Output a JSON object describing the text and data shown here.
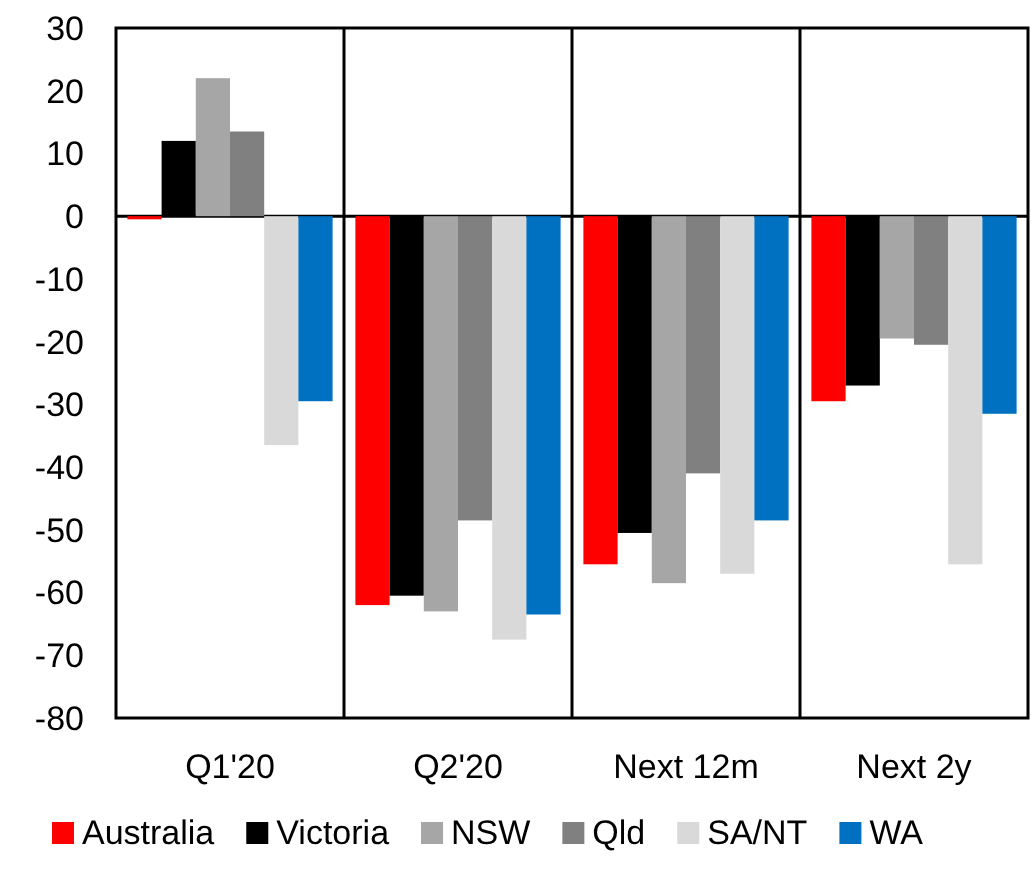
{
  "chart_data": {
    "type": "bar",
    "categories": [
      "Q1'20",
      "Q2'20",
      "Next 12m",
      "Next 2y"
    ],
    "series": [
      {
        "name": "Australia",
        "color": "#ff0000",
        "values": [
          -0.5,
          -62,
          -55.5,
          -29.5
        ]
      },
      {
        "name": "Victoria",
        "color": "#000000",
        "values": [
          12,
          -60.5,
          -50.5,
          -27
        ]
      },
      {
        "name": "NSW",
        "color": "#a6a6a6",
        "values": [
          22,
          -63,
          -58.5,
          -19.5
        ]
      },
      {
        "name": "Qld",
        "color": "#808080",
        "values": [
          13.5,
          -48.5,
          -41,
          -20.5
        ]
      },
      {
        "name": "SA/NT",
        "color": "#d9d9d9",
        "values": [
          -36.5,
          -67.5,
          -57,
          -55.5
        ]
      },
      {
        "name": "WA",
        "color": "#0070c0",
        "values": [
          -29.5,
          -63.5,
          -48.5,
          -31.5
        ]
      }
    ],
    "ylim": [
      -80,
      30
    ],
    "yticks": [
      -80,
      -70,
      -60,
      -50,
      -40,
      -30,
      -20,
      -10,
      0,
      10,
      20,
      30
    ],
    "legend": "bottom"
  }
}
